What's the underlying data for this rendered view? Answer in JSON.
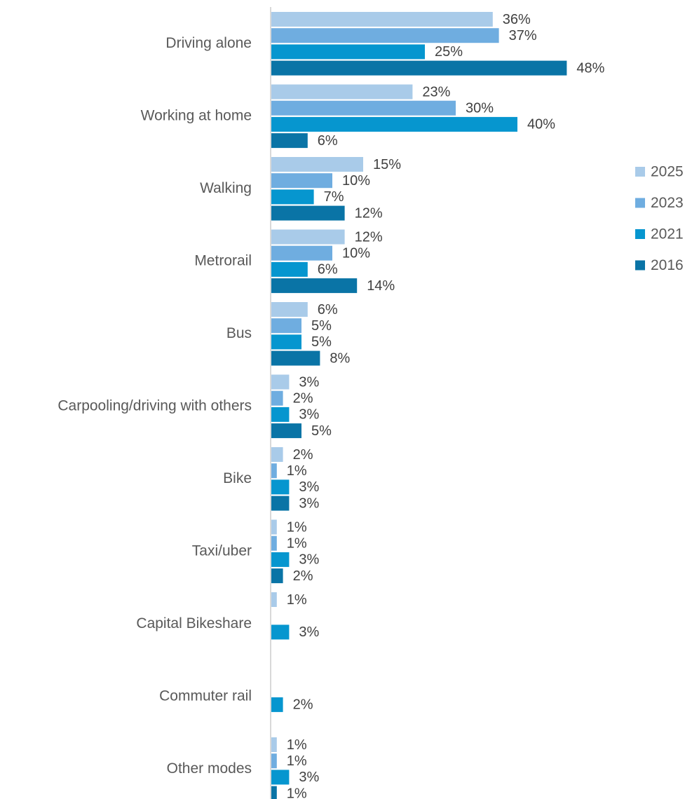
{
  "chart_data": {
    "type": "bar",
    "orientation": "horizontal",
    "title": "",
    "xlabel": "",
    "ylabel": "",
    "xlim": [
      0,
      50
    ],
    "grid": false,
    "legend_position": "right",
    "value_format": "percent",
    "categories": [
      "Driving alone",
      "Working at home",
      "Walking",
      "Metrorail",
      "Bus",
      "Carpooling/driving with others",
      "Bike",
      "Taxi/uber",
      "Capital Bikeshare",
      "Commuter rail",
      "Other modes"
    ],
    "series": [
      {
        "name": "2025",
        "color": "#a9cbe9",
        "values": [
          36,
          23,
          15,
          12,
          6,
          3,
          2,
          1,
          1,
          null,
          1
        ]
      },
      {
        "name": "2023",
        "color": "#6fade0",
        "values": [
          37,
          30,
          10,
          10,
          5,
          2,
          1,
          1,
          null,
          null,
          1
        ]
      },
      {
        "name": "2021",
        "color": "#0696cf",
        "values": [
          25,
          40,
          7,
          6,
          5,
          3,
          3,
          3,
          3,
          2,
          3
        ]
      },
      {
        "name": "2016",
        "color": "#0a74a6",
        "values": [
          48,
          6,
          12,
          14,
          8,
          5,
          3,
          2,
          null,
          null,
          1
        ]
      }
    ],
    "axis_color": "#d9d9d9"
  }
}
